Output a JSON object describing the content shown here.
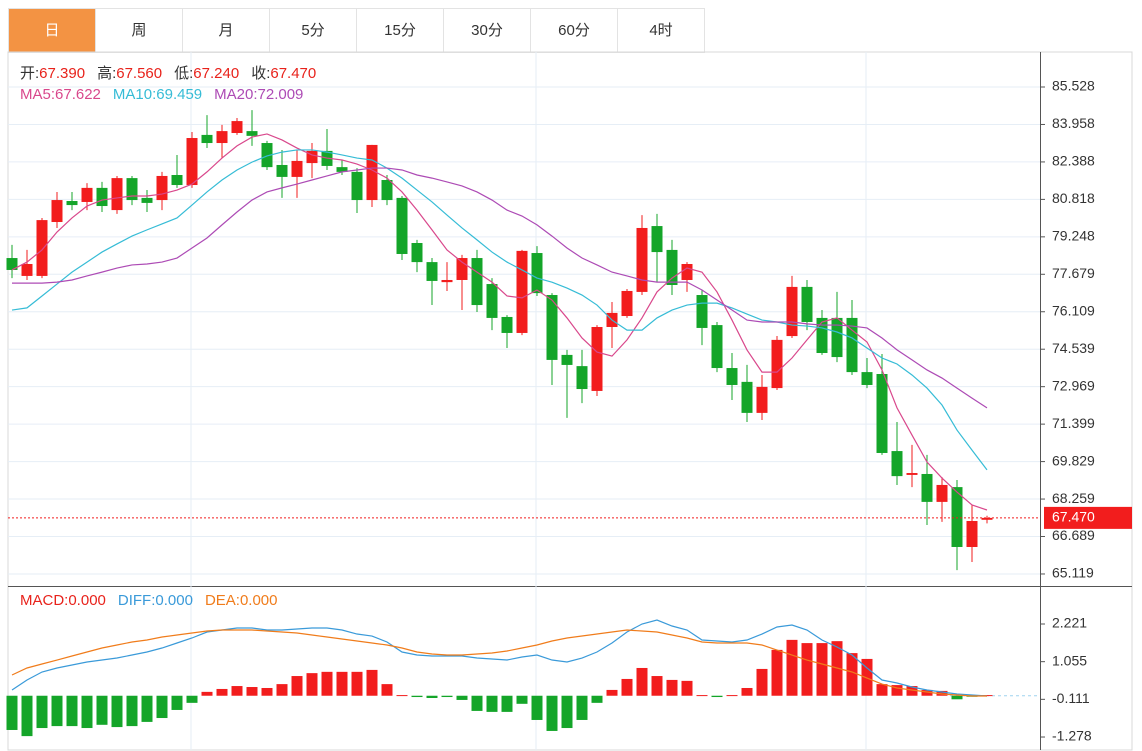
{
  "tabs": [
    "日",
    "周",
    "月",
    "5分",
    "15分",
    "30分",
    "60分",
    "4时"
  ],
  "active_tab": 0,
  "chart_data": [
    {
      "type": "candlestick",
      "info": [
        {
          "label": "开:",
          "value": "67.390"
        },
        {
          "label": "高:",
          "value": "67.560"
        },
        {
          "label": "低:",
          "value": "67.240"
        },
        {
          "label": "收:",
          "value": "67.470"
        }
      ],
      "info_color": "#e8221b",
      "up_color": "#f21d1d",
      "down_color": "#14a529",
      "ylim": [
        64.657,
        86.995
      ],
      "yticks": [
        85.528,
        83.958,
        82.388,
        80.818,
        79.248,
        77.679,
        76.109,
        74.539,
        72.969,
        71.399,
        69.829,
        68.259,
        66.689,
        65.119
      ],
      "grid": true,
      "last_price": 67.47,
      "last_label": "67.470",
      "last_color": "#f21d1d",
      "open": [
        78.36,
        77.61,
        77.61,
        79.87,
        80.75,
        80.71,
        81.3,
        80.37,
        81.71,
        80.88,
        80.79,
        81.84,
        81.42,
        83.52,
        83.18,
        83.6,
        83.68,
        83.18,
        82.26,
        81.76,
        82.34,
        82.85,
        82.17,
        81.97,
        80.79,
        81.63,
        80.88,
        78.99,
        78.19,
        77.35,
        77.44,
        78.36,
        77.27,
        75.89,
        75.22,
        78.57,
        76.81,
        74.3,
        73.83,
        72.79,
        75.47,
        75.93,
        76.94,
        79.7,
        78.7,
        77.44,
        76.81,
        75.55,
        73.75,
        73.17,
        71.87,
        72.91,
        75.09,
        77.15,
        75.85,
        75.85,
        75.85,
        73.58,
        73.5,
        70.27,
        69.27,
        69.31,
        68.14,
        68.76,
        66.25,
        67.39
      ],
      "high": [
        78.91,
        78.7,
        80.04,
        81.13,
        81.13,
        81.5,
        81.55,
        81.8,
        81.8,
        81.21,
        81.97,
        82.68,
        83.64,
        84.35,
        83.94,
        84.23,
        84.56,
        83.27,
        82.89,
        82.89,
        83.18,
        83.77,
        82.47,
        82.13,
        83.1,
        81.84,
        80.96,
        79.12,
        78.36,
        78.19,
        78.49,
        78.7,
        77.52,
        75.97,
        78.7,
        78.86,
        76.89,
        74.51,
        74.51,
        75.55,
        76.52,
        77.06,
        80.16,
        80.21,
        79.12,
        78.19,
        77.02,
        75.68,
        74.38,
        73.88,
        73.46,
        75.09,
        77.61,
        77.44,
        76.18,
        76.94,
        76.6,
        74.17,
        74.34,
        71.49,
        70.53,
        70.11,
        69.18,
        69.06,
        68.01,
        67.56
      ],
      "low": [
        77.52,
        77.44,
        77.52,
        79.62,
        80.37,
        80.37,
        80.29,
        80.21,
        80.58,
        80.29,
        80.37,
        81.3,
        81.3,
        82.97,
        82.55,
        83.52,
        83.06,
        82.05,
        80.88,
        80.88,
        81.71,
        82.05,
        81.84,
        80.25,
        80.5,
        80.58,
        78.28,
        77.77,
        76.39,
        76.98,
        76.18,
        76.1,
        75.34,
        74.59,
        75.13,
        76.77,
        73.04,
        71.66,
        72.28,
        72.58,
        74.59,
        75.85,
        76.81,
        77.35,
        76.81,
        76.94,
        74.71,
        73.58,
        72.41,
        71.49,
        71.57,
        72.83,
        75.01,
        75.34,
        74.3,
        74.0,
        73.46,
        72.91,
        70.11,
        68.85,
        68.76,
        67.17,
        67.3,
        65.28,
        65.62,
        67.24
      ],
      "close": [
        77.86,
        78.11,
        79.95,
        80.79,
        80.58,
        81.3,
        80.54,
        81.71,
        80.79,
        80.67,
        81.8,
        81.42,
        83.39,
        83.18,
        83.68,
        84.1,
        83.48,
        82.17,
        81.76,
        82.43,
        82.85,
        82.22,
        81.97,
        80.79,
        83.1,
        80.79,
        78.53,
        78.19,
        77.4,
        77.44,
        78.36,
        76.39,
        75.85,
        75.22,
        78.66,
        76.89,
        74.09,
        73.88,
        72.87,
        75.47,
        76.06,
        76.98,
        79.62,
        78.61,
        77.23,
        78.11,
        75.43,
        73.75,
        73.04,
        71.87,
        72.96,
        74.93,
        77.15,
        75.68,
        74.38,
        74.21,
        73.58,
        73.04,
        70.19,
        69.22,
        69.35,
        68.14,
        68.85,
        66.25,
        67.34,
        67.47
      ],
      "series": [
        {
          "label": "MA5:",
          "value_label": "67.622",
          "color": "#d9488c",
          "values": [
            77.86,
            78.19,
            78.7,
            79.45,
            80.04,
            80.54,
            80.79,
            80.88,
            80.96,
            80.96,
            81.04,
            81.21,
            81.46,
            81.97,
            82.55,
            83.06,
            83.43,
            83.56,
            83.31,
            82.97,
            82.68,
            82.55,
            82.47,
            82.3,
            82.05,
            81.71,
            81.13,
            80.37,
            79.54,
            78.7,
            78.19,
            77.77,
            77.35,
            76.77,
            76.69,
            77.02,
            76.6,
            75.85,
            75.01,
            74.42,
            74.25,
            74.93,
            75.85,
            76.94,
            77.52,
            77.94,
            77.77,
            76.94,
            75.76,
            74.51,
            73.58,
            73.58,
            74.17,
            74.93,
            75.68,
            75.85,
            75.34,
            74.84,
            73.67,
            72.08,
            70.94,
            69.81,
            69.14,
            68.55,
            68.01,
            67.8
          ]
        },
        {
          "label": "MA10:",
          "value_label": "69.459",
          "color": "#36bcd6",
          "values": [
            76.18,
            76.27,
            76.77,
            77.27,
            77.77,
            78.19,
            78.61,
            78.95,
            79.28,
            79.54,
            79.79,
            80.04,
            80.58,
            81.13,
            81.63,
            82.05,
            82.38,
            82.64,
            82.8,
            82.89,
            82.89,
            82.8,
            82.68,
            82.55,
            82.47,
            82.13,
            81.71,
            81.21,
            80.71,
            80.16,
            79.62,
            79.12,
            78.61,
            78.19,
            77.86,
            77.52,
            77.35,
            77.1,
            76.81,
            76.39,
            75.76,
            75.34,
            75.34,
            75.85,
            76.18,
            76.39,
            76.47,
            76.47,
            76.27,
            76.01,
            75.76,
            75.68,
            75.55,
            75.51,
            75.43,
            75.26,
            75.01,
            74.59,
            74.17,
            73.92,
            73.46,
            72.91,
            72.2,
            71.15,
            70.31,
            69.48
          ]
        },
        {
          "label": "MA20:",
          "value_label": "72.009",
          "color": "#ad4bb5",
          "values": [
            77.31,
            77.31,
            77.31,
            77.35,
            77.44,
            77.61,
            77.77,
            77.94,
            78.07,
            78.11,
            78.19,
            78.36,
            78.78,
            79.2,
            79.75,
            80.29,
            80.79,
            81.13,
            81.3,
            81.46,
            81.63,
            81.8,
            81.97,
            82.05,
            82.13,
            82.13,
            82.05,
            81.84,
            81.71,
            81.55,
            81.38,
            81.13,
            80.79,
            80.37,
            80.12,
            79.75,
            79.28,
            78.78,
            78.36,
            78.07,
            77.77,
            77.61,
            77.44,
            77.35,
            77.35,
            77.35,
            77.02,
            76.6,
            76.18,
            75.76,
            75.68,
            75.68,
            75.68,
            75.6,
            75.55,
            75.55,
            75.51,
            75.43,
            75.01,
            74.51,
            74.09,
            73.67,
            73.33,
            72.91,
            72.49,
            72.08
          ]
        }
      ]
    },
    {
      "type": "macd",
      "ylim": [
        -1.68,
        3.336
      ],
      "yticks": [
        2.221,
        1.055,
        -0.111,
        -1.278
      ],
      "up_color": "#f21d1d",
      "down_color": "#14a529",
      "macd": {
        "label": "MACD:",
        "value_label": "0.000",
        "color": "#e8221b",
        "values": [
          -1.06,
          -1.25,
          -1.0,
          -0.94,
          -0.94,
          -1.0,
          -0.9,
          -0.97,
          -0.94,
          -0.81,
          -0.69,
          -0.44,
          -0.22,
          0.12,
          0.21,
          0.3,
          0.27,
          0.24,
          0.36,
          0.61,
          0.7,
          0.74,
          0.74,
          0.74,
          0.8,
          0.36,
          0.02,
          -0.04,
          -0.07,
          -0.04,
          -0.13,
          -0.47,
          -0.5,
          -0.5,
          -0.25,
          -0.75,
          -1.09,
          -1.0,
          -0.75,
          -0.22,
          0.18,
          0.52,
          0.86,
          0.61,
          0.49,
          0.46,
          0.02,
          -0.04,
          0.02,
          0.24,
          0.83,
          1.42,
          1.73,
          1.63,
          1.63,
          1.69,
          1.32,
          1.14,
          0.36,
          0.33,
          0.3,
          0.18,
          0.15,
          -0.11,
          -0.01,
          0.02
        ]
      },
      "series": [
        {
          "label": "DIFF:",
          "value_label": "0.000",
          "color": "#3a9ad9",
          "values": [
            0.178,
            0.487,
            0.735,
            0.859,
            0.952,
            1.045,
            1.106,
            1.168,
            1.261,
            1.354,
            1.478,
            1.633,
            1.788,
            1.973,
            2.035,
            2.097,
            2.097,
            2.035,
            2.035,
            2.066,
            2.097,
            2.097,
            2.035,
            1.911,
            1.849,
            1.664,
            1.354,
            1.261,
            1.23,
            1.23,
            1.23,
            1.168,
            1.137,
            1.106,
            1.199,
            1.261,
            1.106,
            1.045,
            1.168,
            1.354,
            1.633,
            1.973,
            2.221,
            2.345,
            2.159,
            2.035,
            1.726,
            1.695,
            1.664,
            1.726,
            1.911,
            2.128,
            2.19,
            2.035,
            1.726,
            1.509,
            1.261,
            0.859,
            0.487,
            0.394,
            0.271,
            0.178,
            0.116,
            0.054,
            0.023,
            -0.008
          ]
        },
        {
          "label": "DEA:",
          "value_label": "0.000",
          "color": "#f07c1b",
          "values": [
            0.642,
            0.859,
            0.983,
            1.106,
            1.23,
            1.354,
            1.478,
            1.571,
            1.664,
            1.726,
            1.818,
            1.88,
            1.942,
            2.004,
            2.035,
            2.035,
            2.035,
            2.004,
            1.973,
            1.942,
            1.88,
            1.818,
            1.757,
            1.695,
            1.633,
            1.571,
            1.478,
            1.354,
            1.292,
            1.261,
            1.261,
            1.292,
            1.323,
            1.385,
            1.478,
            1.571,
            1.695,
            1.788,
            1.849,
            1.911,
            1.973,
            2.035,
            2.004,
            1.973,
            1.88,
            1.788,
            1.664,
            1.633,
            1.633,
            1.633,
            1.571,
            1.416,
            1.261,
            1.106,
            0.983,
            0.859,
            0.735,
            0.549,
            0.363,
            0.24,
            0.178,
            0.116,
            0.054,
            0.023,
            -0.008,
            -0.008
          ]
        }
      ]
    }
  ]
}
